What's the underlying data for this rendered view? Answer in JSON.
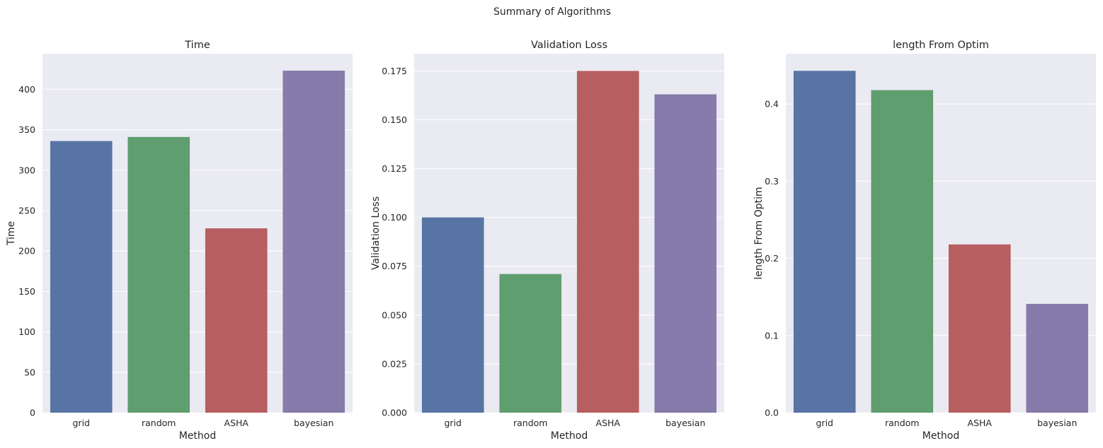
{
  "figure": {
    "suptitle": "Summary of Algorithms"
  },
  "style": {
    "panel_background": "#eaeaf2",
    "grid_color": "#ffffff",
    "text_color": "#262626",
    "bar_colors": [
      "#5874a4",
      "#5f9e6e",
      "#b65e60",
      "#867baa"
    ]
  },
  "chart_data": [
    {
      "type": "bar",
      "title": "Time",
      "xlabel": "Method",
      "ylabel": "Time",
      "categories": [
        "grid",
        "random",
        "ASHA",
        "bayesian"
      ],
      "values": [
        336,
        341,
        228,
        423
      ],
      "ylim": [
        0,
        444
      ],
      "yticks": [
        0,
        50,
        100,
        150,
        200,
        250,
        300,
        350,
        400
      ],
      "ytick_labels": [
        "0",
        "50",
        "100",
        "150",
        "200",
        "250",
        "300",
        "350",
        "400"
      ],
      "grid": true,
      "legend": "none"
    },
    {
      "type": "bar",
      "title": "Validation Loss",
      "xlabel": "Method",
      "ylabel": "Validation Loss",
      "categories": [
        "grid",
        "random",
        "ASHA",
        "bayesian"
      ],
      "values": [
        0.1,
        0.071,
        0.175,
        0.163
      ],
      "ylim": [
        0,
        0.1838
      ],
      "yticks": [
        0,
        0.025,
        0.05,
        0.075,
        0.1,
        0.125,
        0.15,
        0.175
      ],
      "ytick_labels": [
        "0.000",
        "0.025",
        "0.050",
        "0.075",
        "0.100",
        "0.125",
        "0.150",
        "0.175"
      ],
      "grid": true,
      "legend": "none"
    },
    {
      "type": "bar",
      "title": "length From Optim",
      "xlabel": "Method",
      "ylabel": "length From Optim",
      "categories": [
        "grid",
        "random",
        "ASHA",
        "bayesian"
      ],
      "values": [
        0.443,
        0.418,
        0.218,
        0.141
      ],
      "ylim": [
        0,
        0.4652
      ],
      "yticks": [
        0,
        0.1,
        0.2,
        0.3,
        0.4
      ],
      "ytick_labels": [
        "0.0",
        "0.1",
        "0.2",
        "0.3",
        "0.4"
      ],
      "grid": true,
      "legend": "none"
    }
  ]
}
